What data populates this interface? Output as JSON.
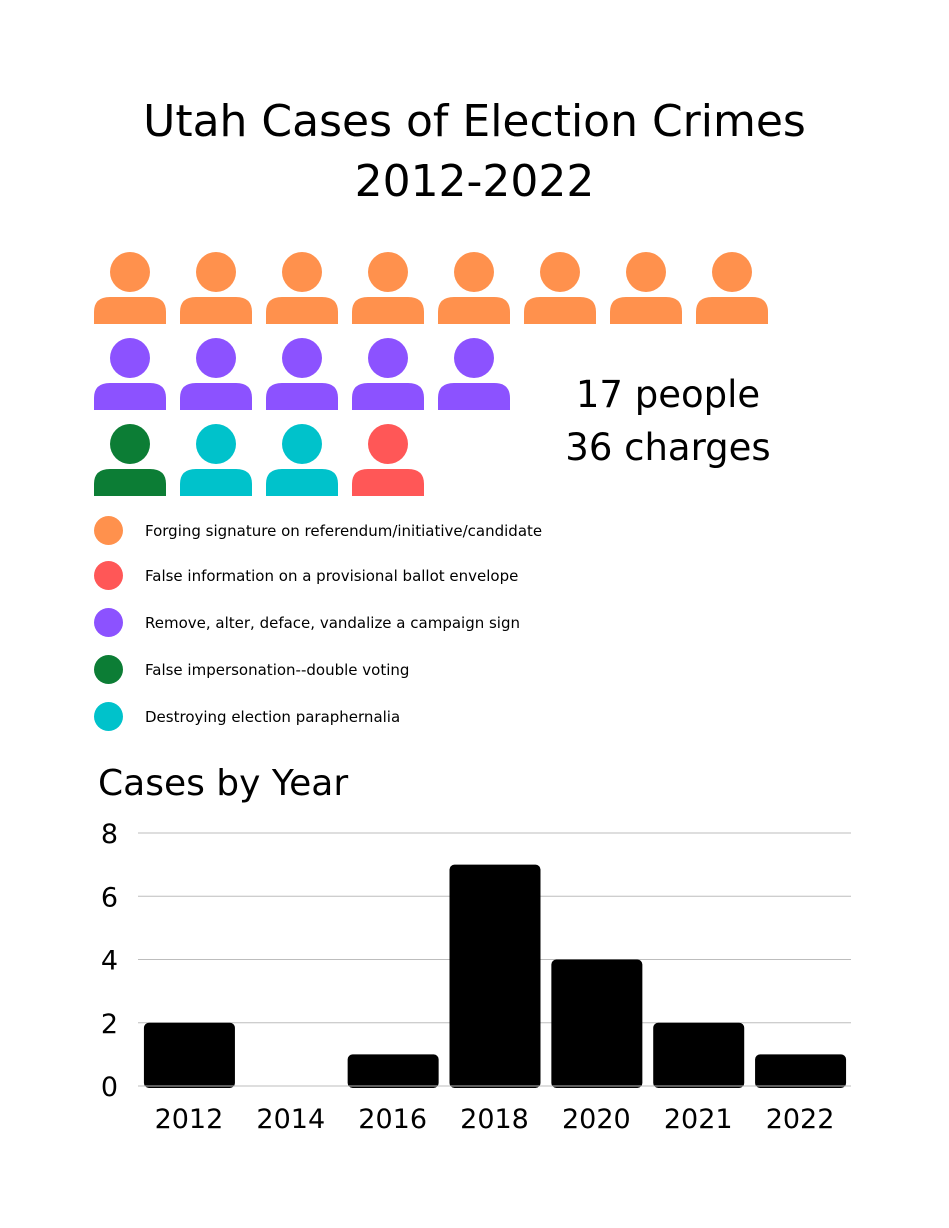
{
  "title": {
    "line1": "Utah Cases of Election Crimes",
    "line2": "2012-2022"
  },
  "summary": {
    "people": "17 people",
    "charges": "36 charges"
  },
  "colors": {
    "orange": "#FF914D",
    "purple": "#8C52FF",
    "green": "#0C7D35",
    "teal": "#00C2CB",
    "red": "#FF5757",
    "bar": "#000000",
    "grid": "#BDBDBD"
  },
  "people_rows": [
    [
      "orange",
      "orange",
      "orange",
      "orange",
      "orange",
      "orange",
      "orange",
      "orange"
    ],
    [
      "purple",
      "purple",
      "purple",
      "purple",
      "purple"
    ],
    [
      "green",
      "teal",
      "teal",
      "red"
    ]
  ],
  "legend": [
    {
      "color": "orange",
      "label": "Forging signature on referendum/initiative/candidate"
    },
    {
      "color": "red",
      "label": "False information on a provisional ballot envelope"
    },
    {
      "color": "purple",
      "label": "Remove, alter, deface, vandalize a campaign sign"
    },
    {
      "color": "green",
      "label": "False impersonation--double voting"
    },
    {
      "color": "teal",
      "label": "Destroying election paraphernalia"
    }
  ],
  "chart_data": {
    "type": "bar",
    "title": "Cases by Year",
    "categories": [
      "2012",
      "2014",
      "2016",
      "2018",
      "2020",
      "2021",
      "2022"
    ],
    "values": [
      2,
      0,
      1,
      7,
      4,
      2,
      1
    ],
    "ylim": [
      0,
      8
    ],
    "yticks": [
      "0",
      "2",
      "4",
      "6",
      "8"
    ],
    "grid": true,
    "xlabel": "",
    "ylabel": ""
  }
}
